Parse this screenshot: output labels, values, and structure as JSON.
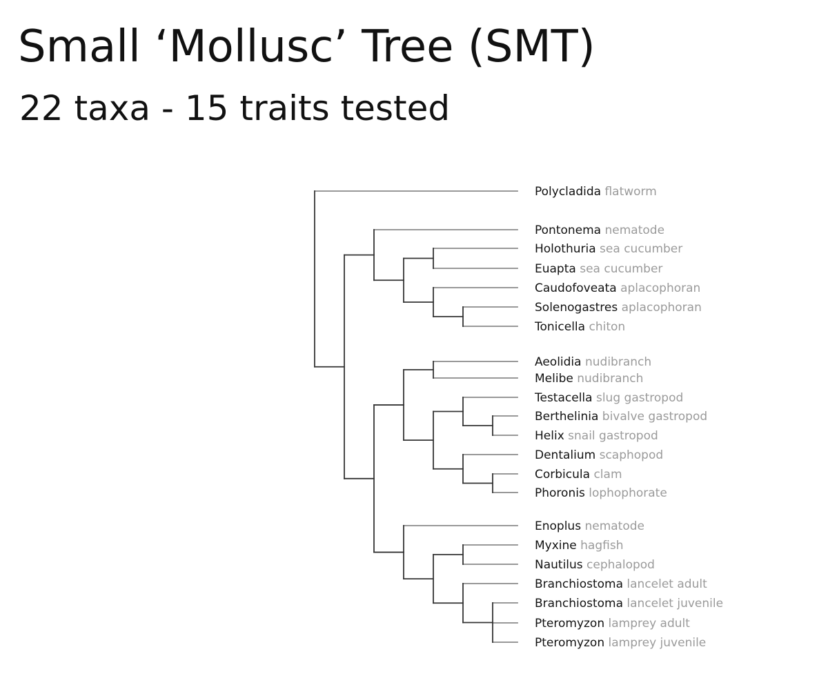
{
  "title": "Small ‘Mollusc’ Tree (SMT)",
  "subtitle": "22 taxa - 15 traits tested",
  "colors": {
    "text": "#111111",
    "common_name": "#9a9a9a",
    "branch": "#333333",
    "branch_light": "#8a8a8a"
  },
  "taxa": [
    {
      "name": "Polycladida",
      "common": "flatworm"
    },
    {
      "name": "Pontonema",
      "common": "nematode"
    },
    {
      "name": "Holothuria",
      "common": "sea cucumber"
    },
    {
      "name": "Euapta",
      "common": "sea cucumber"
    },
    {
      "name": "Caudofoveata",
      "common": "aplacophoran"
    },
    {
      "name": "Solenogastres",
      "common": "aplacophoran"
    },
    {
      "name": "Tonicella",
      "common": "chiton"
    },
    {
      "name": "Aeolidia",
      "common": "nudibranch"
    },
    {
      "name": "Melibe",
      "common": "nudibranch"
    },
    {
      "name": "Testacella",
      "common": "slug gastropod"
    },
    {
      "name": "Berthelinia",
      "common": "bivalve gastropod"
    },
    {
      "name": "Helix",
      "common": "snail gastropod"
    },
    {
      "name": "Dentalium",
      "common": "scaphopod"
    },
    {
      "name": "Corbicula",
      "common": "clam"
    },
    {
      "name": "Phoronis",
      "common": "lophophorate"
    },
    {
      "name": "Enoplus",
      "common": "nematode"
    },
    {
      "name": "Myxine",
      "common": "hagfish"
    },
    {
      "name": "Nautilus",
      "common": "cephalopod"
    },
    {
      "name": "Branchiostoma",
      "common": "lancelet adult"
    },
    {
      "name": "Branchiostoma",
      "common": "lancelet juvenile"
    },
    {
      "name": "Pteromyzon",
      "common": "lamprey adult"
    },
    {
      "name": "Pteromyzon",
      "common": "lamprey juvenile"
    }
  ],
  "tree": {
    "children": [
      {
        "leaf": 0
      },
      {
        "children": [
          {
            "children": [
              {
                "leaf": 1
              },
              {
                "children": [
                  {
                    "children": [
                      {
                        "leaf": 2
                      },
                      {
                        "leaf": 3
                      }
                    ]
                  },
                  {
                    "children": [
                      {
                        "leaf": 4
                      },
                      {
                        "children": [
                          {
                            "leaf": 5
                          },
                          {
                            "leaf": 6
                          }
                        ]
                      }
                    ]
                  }
                ]
              }
            ]
          },
          {
            "children": [
              {
                "children": [
                  {
                    "children": [
                      {
                        "leaf": 7
                      },
                      {
                        "leaf": 8
                      }
                    ]
                  },
                  {
                    "children": [
                      {
                        "children": [
                          {
                            "leaf": 9
                          },
                          {
                            "children": [
                              {
                                "leaf": 10
                              },
                              {
                                "leaf": 11
                              }
                            ]
                          }
                        ]
                      },
                      {
                        "children": [
                          {
                            "leaf": 12
                          },
                          {
                            "children": [
                              {
                                "leaf": 13
                              },
                              {
                                "leaf": 14
                              }
                            ]
                          }
                        ]
                      }
                    ]
                  }
                ]
              },
              {
                "children": [
                  {
                    "leaf": 15
                  },
                  {
                    "children": [
                      {
                        "children": [
                          {
                            "leaf": 16
                          },
                          {
                            "leaf": 17
                          }
                        ]
                      },
                      {
                        "children": [
                          {
                            "leaf": 18
                          },
                          {
                            "children": [
                              {
                                "leaf": 19
                              },
                              {
                                "leaf": 20
                              },
                              {
                                "leaf": 21
                              }
                            ]
                          }
                        ]
                      }
                    ]
                  }
                ]
              }
            ]
          }
        ]
      }
    ]
  }
}
